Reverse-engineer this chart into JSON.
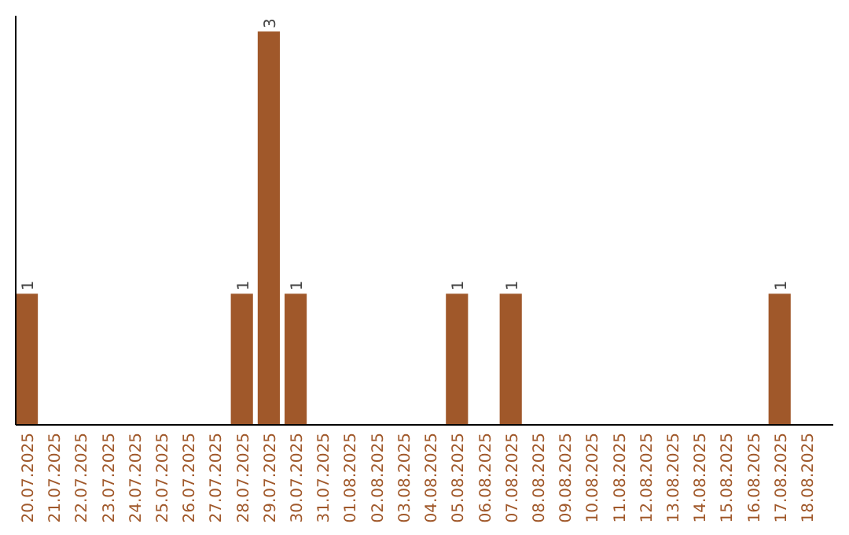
{
  "chart_data": {
    "type": "bar",
    "categories": [
      "20.07.2025",
      "21.07.2025",
      "22.07.2025",
      "23.07.2025",
      "24.07.2025",
      "25.07.2025",
      "26.07.2025",
      "27.07.2025",
      "28.07.2025",
      "29.07.2025",
      "30.07.2025",
      "31.07.2025",
      "01.08.2025",
      "02.08.2025",
      "03.08.2025",
      "04.08.2025",
      "05.08.2025",
      "06.08.2025",
      "07.08.2025",
      "08.08.2025",
      "09.08.2025",
      "10.08.2025",
      "11.08.2025",
      "12.08.2025",
      "13.08.2025",
      "14.08.2025",
      "15.08.2025",
      "16.08.2025",
      "17.08.2025",
      "18.08.2025"
    ],
    "values": [
      1,
      0,
      0,
      0,
      0,
      0,
      0,
      0,
      1,
      3,
      1,
      0,
      0,
      0,
      0,
      0,
      1,
      0,
      1,
      0,
      0,
      0,
      0,
      0,
      0,
      0,
      0,
      0,
      1,
      0
    ],
    "value_labels": [
      "1",
      null,
      null,
      null,
      null,
      null,
      null,
      null,
      "1",
      "3",
      "1",
      null,
      null,
      null,
      null,
      null,
      "1",
      null,
      "1",
      null,
      null,
      null,
      null,
      null,
      null,
      null,
      null,
      null,
      "1",
      null
    ],
    "color": "#a0582a"
  }
}
